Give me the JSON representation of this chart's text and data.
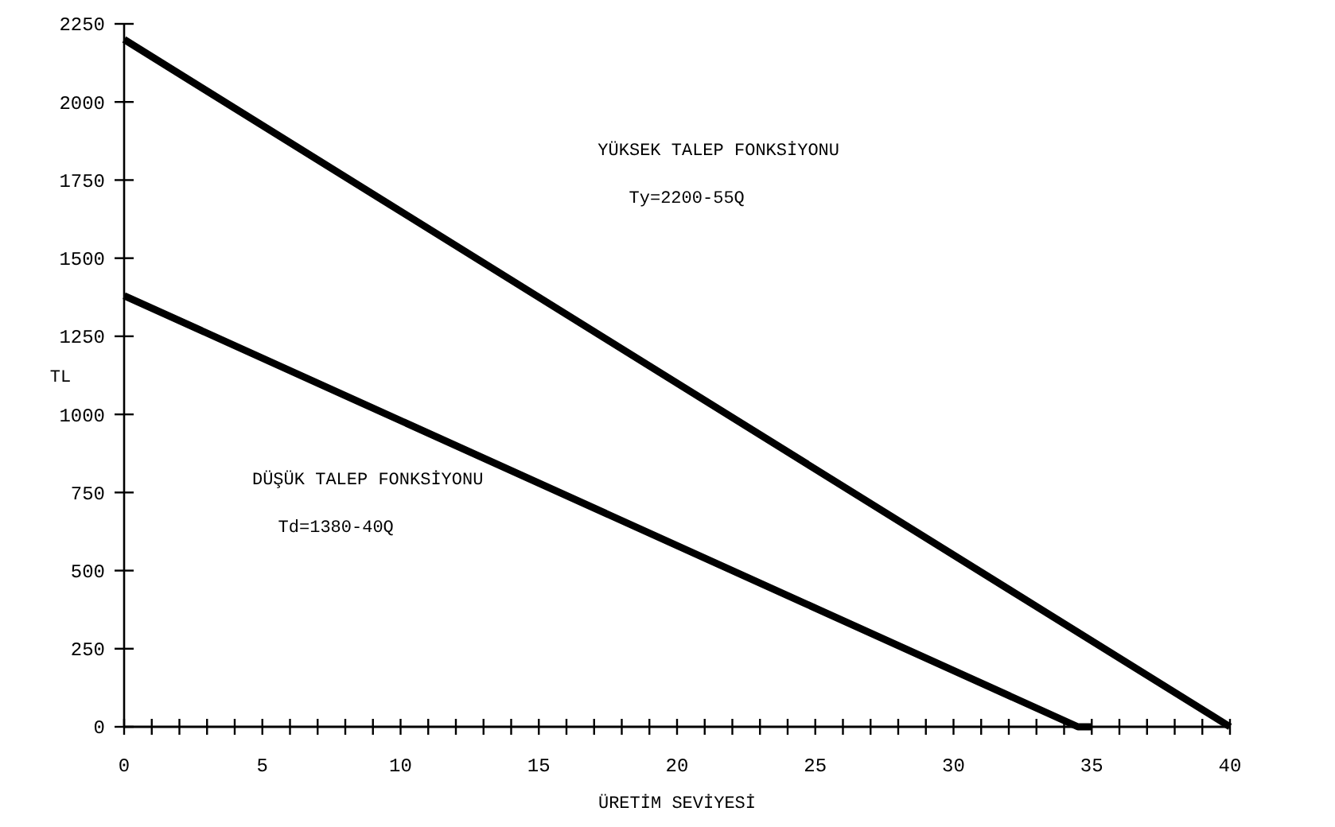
{
  "chart_data": {
    "type": "line",
    "xlabel": "ÜRETİM SEVİYESİ",
    "ylabel": "TL",
    "xlim": [
      0,
      40
    ],
    "ylim": [
      0,
      2250
    ],
    "xticks": [
      0,
      {
        "value": 1,
        "label": null
      },
      {
        "value": 2,
        "label": null
      },
      {
        "value": 3,
        "label": null
      },
      {
        "value": 4,
        "label": null
      },
      5,
      {
        "value": 6,
        "label": null
      },
      {
        "value": 7,
        "label": null
      },
      {
        "value": 8,
        "label": null
      },
      {
        "value": 9,
        "label": null
      },
      10,
      {
        "value": 11,
        "label": null
      },
      {
        "value": 12,
        "label": null
      },
      {
        "value": 13,
        "label": null
      },
      {
        "value": 14,
        "label": null
      },
      15,
      {
        "value": 16,
        "label": null
      },
      {
        "value": 17,
        "label": null
      },
      {
        "value": 18,
        "label": null
      },
      {
        "value": 19,
        "label": null
      },
      20,
      {
        "value": 21,
        "label": null
      },
      {
        "value": 22,
        "label": null
      },
      {
        "value": 23,
        "label": null
      },
      {
        "value": 24,
        "label": null
      },
      25,
      {
        "value": 26,
        "label": null
      },
      {
        "value": 27,
        "label": null
      },
      {
        "value": 28,
        "label": null
      },
      {
        "value": 29,
        "label": null
      },
      30,
      {
        "value": 31,
        "label": null
      },
      {
        "value": 32,
        "label": null
      },
      {
        "value": 33,
        "label": null
      },
      {
        "value": 34,
        "label": null
      },
      35,
      {
        "value": 36,
        "label": null
      },
      {
        "value": 37,
        "label": null
      },
      {
        "value": 38,
        "label": null
      },
      {
        "value": 39,
        "label": null
      },
      40
    ],
    "yticks": [
      0,
      250,
      500,
      750,
      1000,
      1250,
      1500,
      1750,
      2000,
      2250
    ],
    "grid": false,
    "legend": false,
    "marker": "none",
    "line_style": "solid",
    "series": [
      {
        "color": "#000000",
        "x": [
          0,
          40
        ],
        "values": [
          2200,
          0
        ]
      },
      {
        "color": "#000000",
        "x": [
          0,
          34.5,
          35
        ],
        "values": [
          1380,
          0,
          0
        ]
      }
    ],
    "annotations": [
      "YÜKSEK TALEP FONKSİYONU",
      "Ty=2200-55Q",
      "DÜŞÜK TALEP FONKSİYONU",
      "Td=1380-40Q"
    ]
  }
}
